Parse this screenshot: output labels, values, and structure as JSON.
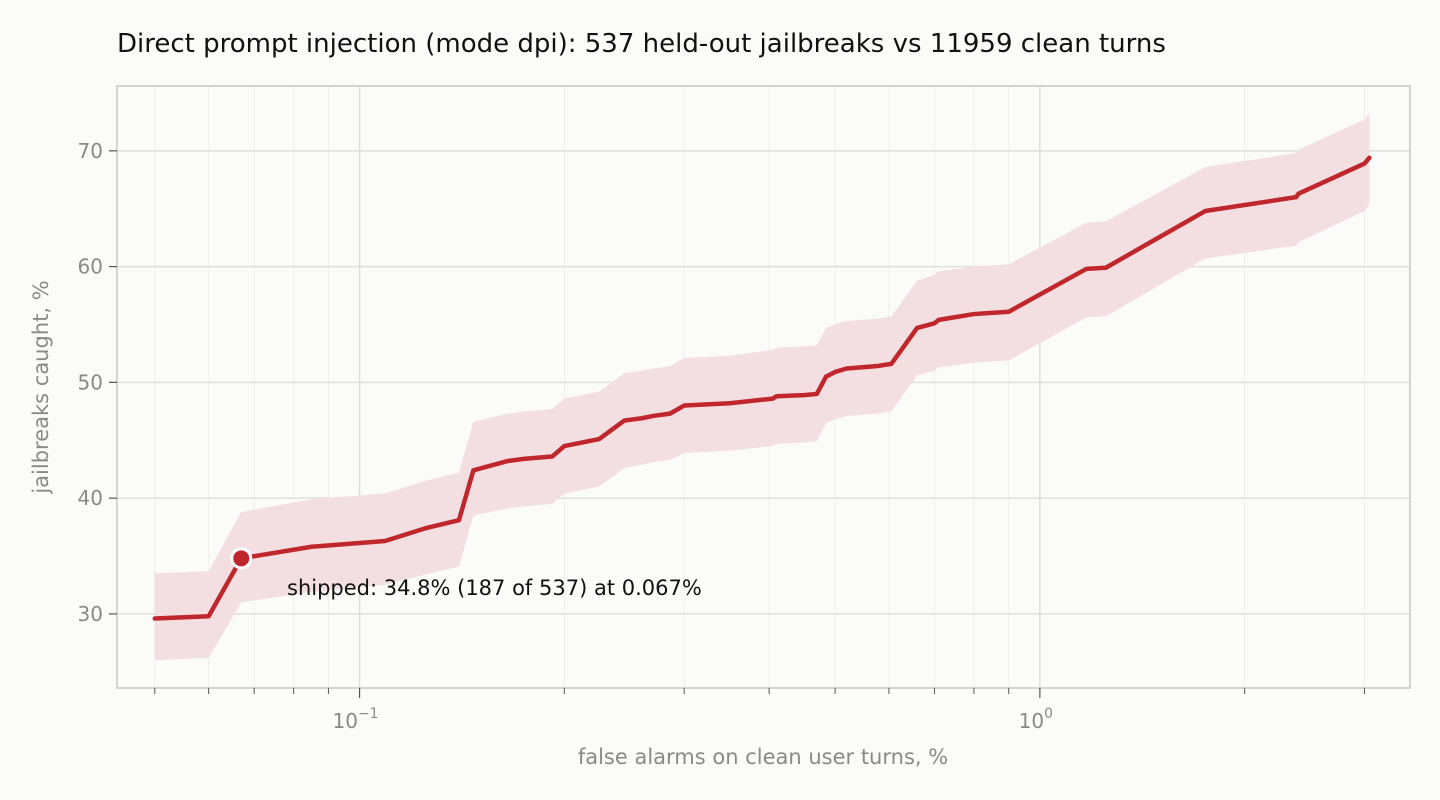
{
  "chart_data": {
    "type": "line",
    "title": "Direct prompt injection (mode dpi): 537 held-out jailbreaks vs 11959 clean turns",
    "xlabel": "false alarms on clean user turns, %",
    "ylabel": "jailbreaks caught, %",
    "x_scale": "log",
    "xlim": [
      0.044,
      3.5
    ],
    "ylim": [
      23.6,
      75.6
    ],
    "grid": true,
    "x_major_ticks": [
      0.1,
      1
    ],
    "x_tick_labels": [
      {
        "base": "10",
        "exp": "−1"
      },
      {
        "base": "10",
        "exp": "0"
      }
    ],
    "y_ticks": [
      30,
      40,
      50,
      60,
      70
    ],
    "colors": {
      "line": "#c0272d",
      "band": "#f3dfe1",
      "grid": "#dededa",
      "frame": "#c8c8c2"
    },
    "series": [
      {
        "x": [
          0.05,
          0.06,
          0.067,
          0.085,
          0.109,
          0.125,
          0.14,
          0.147,
          0.165,
          0.175,
          0.192,
          0.2,
          0.225,
          0.245,
          0.26,
          0.27,
          0.286,
          0.3,
          0.35,
          0.405,
          0.41,
          0.45,
          0.47,
          0.485,
          0.5,
          0.52,
          0.575,
          0.605,
          0.66,
          0.7,
          0.71,
          0.8,
          0.9,
          1.17,
          1.25,
          1.75,
          2.38,
          2.4,
          3.0,
          3.05
        ],
        "y": [
          29.6,
          29.8,
          34.8,
          35.8,
          36.3,
          37.4,
          38.1,
          42.4,
          43.2,
          43.4,
          43.6,
          44.5,
          45.1,
          46.7,
          46.9,
          47.1,
          47.3,
          48.0,
          48.2,
          48.6,
          48.8,
          48.9,
          49.0,
          50.5,
          50.9,
          51.2,
          51.4,
          51.6,
          54.7,
          55.1,
          55.4,
          55.9,
          56.1,
          59.8,
          59.9,
          64.8,
          66.0,
          66.3,
          68.9,
          69.4
        ],
        "lower": [
          26.0,
          26.2,
          31.0,
          31.9,
          32.5,
          33.4,
          34.1,
          38.5,
          39.1,
          39.3,
          39.5,
          40.4,
          41.0,
          42.6,
          42.9,
          43.1,
          43.3,
          43.9,
          44.1,
          44.5,
          44.7,
          44.8,
          44.9,
          46.5,
          46.8,
          47.1,
          47.3,
          47.5,
          50.6,
          51.0,
          51.3,
          51.7,
          51.9,
          55.6,
          55.7,
          60.7,
          61.8,
          62.1,
          64.8,
          65.4
        ],
        "upper": [
          33.5,
          33.7,
          38.8,
          39.9,
          40.4,
          41.5,
          42.2,
          46.6,
          47.3,
          47.5,
          47.7,
          48.6,
          49.2,
          50.8,
          51.0,
          51.2,
          51.4,
          52.1,
          52.3,
          52.8,
          53.0,
          53.1,
          53.2,
          54.7,
          55.0,
          55.3,
          55.5,
          55.7,
          58.8,
          59.3,
          59.6,
          60.0,
          60.2,
          63.8,
          63.9,
          68.6,
          69.8,
          70.1,
          72.7,
          73.3
        ]
      }
    ],
    "highlight": {
      "x": 0.067,
      "y": 34.8
    },
    "annotation": "shipped: 34.8% (187 of 537) at 0.067%"
  }
}
